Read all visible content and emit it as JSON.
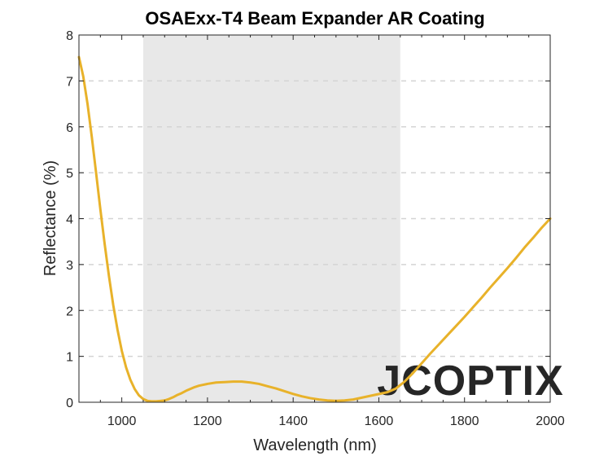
{
  "chart_data": {
    "type": "line",
    "title": "OSAExx-T4 Beam Expander AR Coating",
    "xlabel": "Wavelength (nm)",
    "ylabel": "Reflectance (%)",
    "xlim": [
      900,
      2000
    ],
    "ylim": [
      0,
      8
    ],
    "xticks": [
      1000,
      1200,
      1400,
      1600,
      1800,
      2000
    ],
    "xticks_minor_step": 50,
    "yticks": [
      0,
      1,
      2,
      3,
      4,
      5,
      6,
      7,
      8
    ],
    "grid": "horizontal dashed",
    "shaded_band": {
      "x_start": 1050,
      "x_end": 1650,
      "color": "#e8e8e8"
    },
    "series": [
      {
        "color": "#e8b22a",
        "x": [
          900,
          910,
          920,
          930,
          940,
          950,
          960,
          970,
          980,
          990,
          1000,
          1010,
          1020,
          1030,
          1040,
          1050,
          1060,
          1070,
          1080,
          1090,
          1100,
          1110,
          1120,
          1130,
          1140,
          1150,
          1160,
          1170,
          1180,
          1190,
          1200,
          1220,
          1240,
          1260,
          1280,
          1300,
          1320,
          1340,
          1360,
          1380,
          1400,
          1420,
          1440,
          1460,
          1480,
          1500,
          1520,
          1540,
          1560,
          1580,
          1600,
          1620,
          1640,
          1660,
          1680,
          1700,
          1720,
          1740,
          1760,
          1780,
          1800,
          1820,
          1840,
          1860,
          1880,
          1900,
          1920,
          1940,
          1960,
          1980,
          2000
        ],
        "values": [
          7.52,
          7.1,
          6.5,
          5.78,
          5.0,
          4.2,
          3.45,
          2.75,
          2.12,
          1.58,
          1.12,
          0.76,
          0.49,
          0.29,
          0.15,
          0.07,
          0.03,
          0.02,
          0.02,
          0.03,
          0.04,
          0.07,
          0.11,
          0.16,
          0.2,
          0.25,
          0.29,
          0.33,
          0.36,
          0.38,
          0.4,
          0.43,
          0.44,
          0.45,
          0.45,
          0.43,
          0.4,
          0.35,
          0.3,
          0.24,
          0.18,
          0.13,
          0.09,
          0.06,
          0.04,
          0.03,
          0.04,
          0.06,
          0.1,
          0.14,
          0.18,
          0.22,
          0.3,
          0.45,
          0.64,
          0.85,
          1.06,
          1.26,
          1.46,
          1.66,
          1.86,
          2.07,
          2.28,
          2.5,
          2.71,
          2.92,
          3.14,
          3.37,
          3.58,
          3.8,
          4.0
        ]
      }
    ]
  },
  "watermark": {
    "text": "JCOPTIX",
    "color": "#dcdcdc"
  },
  "colors": {
    "axis": "#262626",
    "grid": "#d4d4d4",
    "plot_background": "#ffffff"
  }
}
